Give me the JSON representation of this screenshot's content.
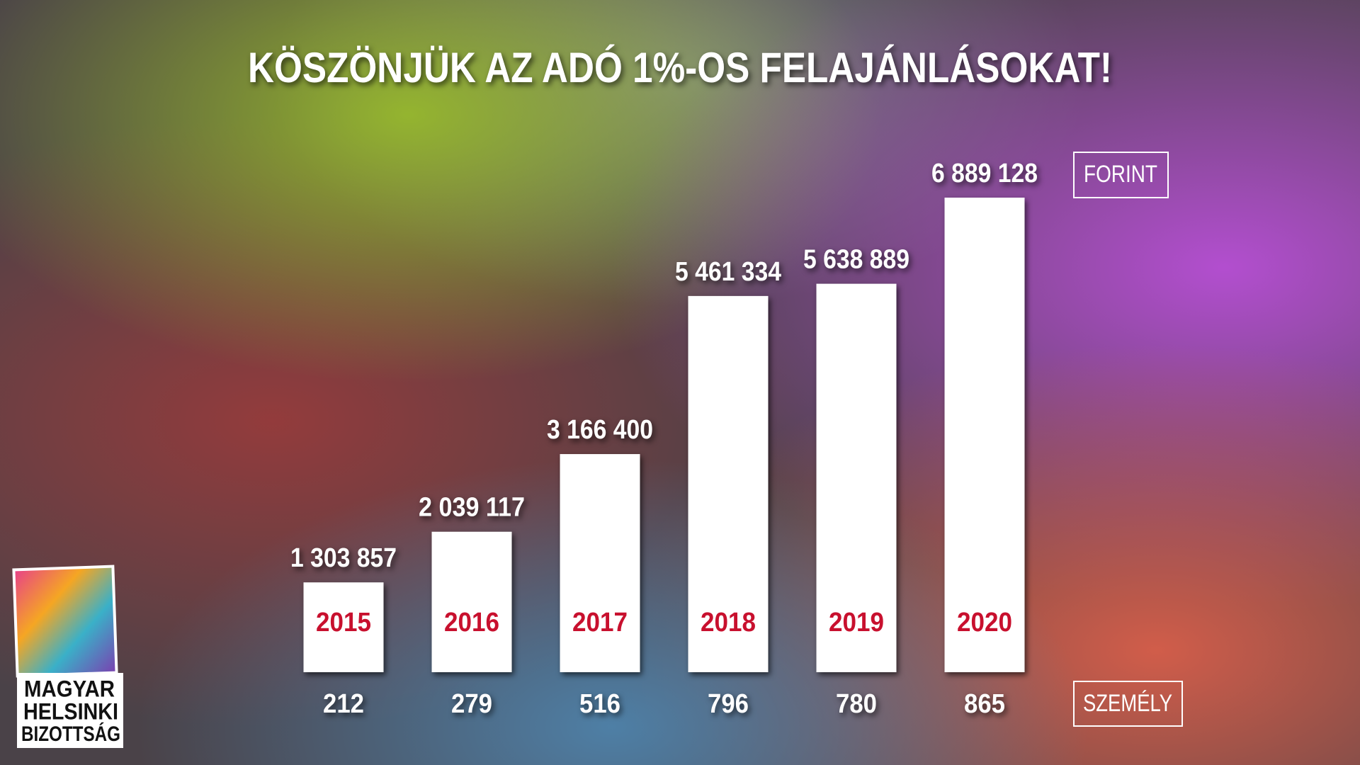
{
  "chart_data": {
    "type": "bar",
    "title": "KÖSZÖNJÜK AZ ADÓ 1%-OS FELAJÁNLÁSOKAT!",
    "categories": [
      "2015",
      "2016",
      "2017",
      "2018",
      "2019",
      "2020"
    ],
    "values": [
      1303857,
      2039117,
      3166400,
      5461334,
      5638889,
      6889128
    ],
    "value_labels": [
      "1 303 857",
      "2 039 117",
      "3 166 400",
      "5 461 334",
      "5 638 889",
      "6 889 128"
    ],
    "color": "#ffffff",
    "category_color": "#c8102e",
    "unit_label": "FORINT",
    "persons": {
      "label": "SZEMÉLY",
      "values": [
        212,
        279,
        516,
        796,
        780,
        865
      ]
    }
  },
  "logo": {
    "lines": [
      "MAGYAR",
      "HELSINKI",
      "BIZOTTSÁG"
    ]
  }
}
